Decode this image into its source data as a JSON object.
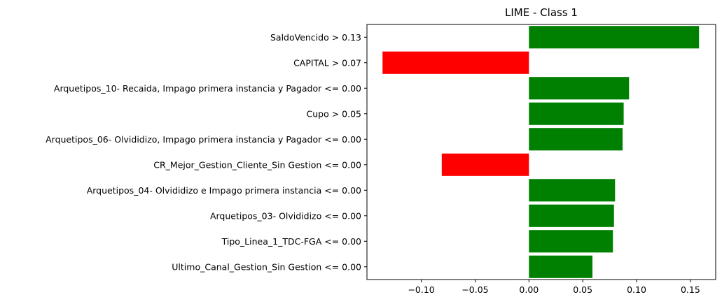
{
  "chart_data": {
    "type": "bar",
    "orientation": "horizontal",
    "title": "LIME - Class 1",
    "xlabel": "",
    "ylabel": "",
    "xlim": [
      -0.1505,
      0.1735
    ],
    "x_ticks": [
      -0.1,
      -0.05,
      0.0,
      0.05,
      0.1,
      0.15
    ],
    "x_tick_labels": [
      "−0.10",
      "−0.05",
      "0.00",
      "0.05",
      "0.10",
      "0.15"
    ],
    "grid": false,
    "legend": "none",
    "positive_color": "#008000",
    "negative_color": "#ff0000",
    "categories": [
      "SaldoVencido > 0.13",
      "CAPITAL > 0.07",
      "Arquetipos_10- Recaida, Impago primera instancia y Pagador <= 0.00",
      "Cupo > 0.05",
      "Arquetipos_06- Olvididizo, Impago primera instancia y Pagador <= 0.00",
      "CR_Mejor_Gestion_Cliente_Sin Gestion <= 0.00",
      "Arquetipos_04- Olvididizo e Impago primera instancia <= 0.00",
      "Arquetipos_03- Olvididizo <= 0.00",
      "Tipo_Linea_1_TDC-FGA <= 0.00",
      "Ultimo_Canal_Gestion_Sin Gestion <= 0.00"
    ],
    "values": [
      0.158,
      -0.136,
      0.093,
      0.088,
      0.087,
      -0.081,
      0.08,
      0.079,
      0.078,
      0.059
    ]
  }
}
